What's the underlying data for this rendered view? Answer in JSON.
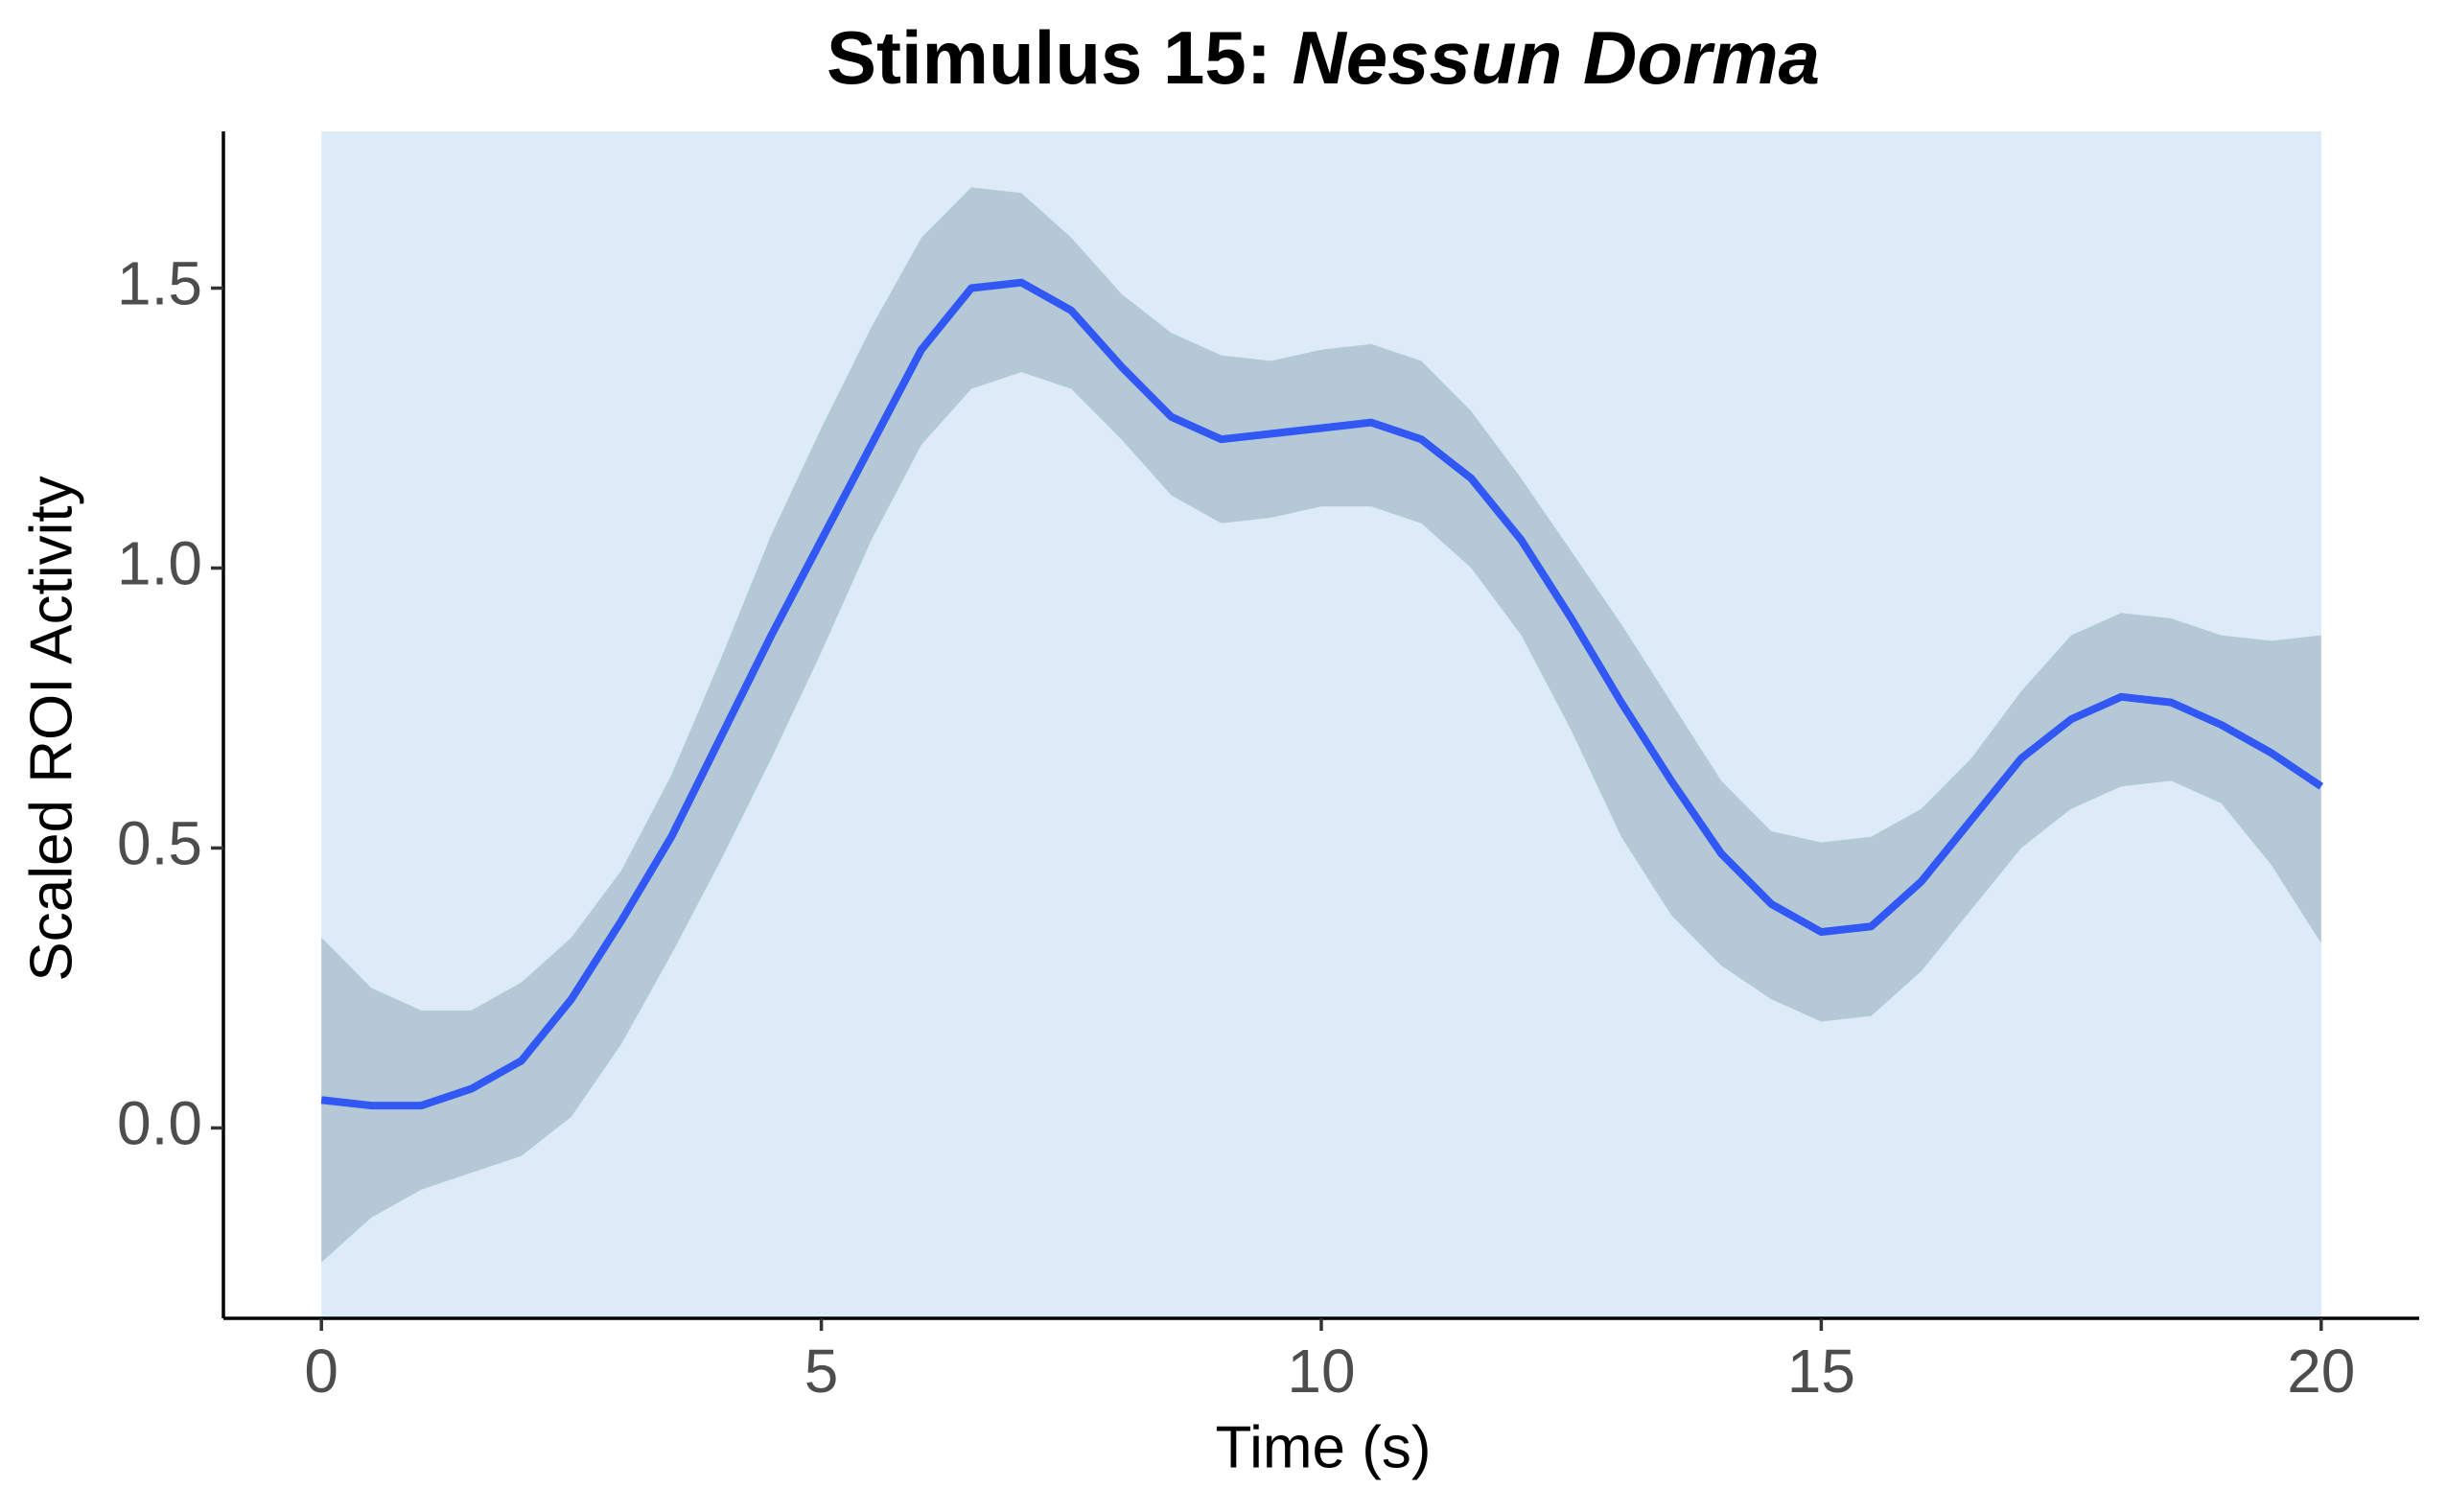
{
  "chart_data": {
    "type": "line",
    "title": "Stimulus 15:",
    "title_italic": "Nessun Dorma",
    "x_label": "Time (s)",
    "y_label": "Scaled ROI Activity",
    "x": [
      0,
      0.5,
      1,
      1.5,
      2,
      2.5,
      3,
      3.5,
      4,
      4.5,
      5,
      5.5,
      6,
      6.5,
      7,
      7.5,
      8,
      8.5,
      9,
      9.5,
      10,
      10.5,
      11,
      11.5,
      12,
      12.5,
      13,
      13.5,
      14,
      14.5,
      15,
      15.5,
      16,
      16.5,
      17,
      17.5,
      18,
      18.5,
      19,
      19.5,
      20
    ],
    "values": [
      0.05,
      0.04,
      0.04,
      0.07,
      0.12,
      0.23,
      0.37,
      0.52,
      0.7,
      0.88,
      1.05,
      1.22,
      1.39,
      1.5,
      1.51,
      1.46,
      1.36,
      1.27,
      1.23,
      1.24,
      1.25,
      1.26,
      1.23,
      1.16,
      1.05,
      0.91,
      0.76,
      0.62,
      0.49,
      0.4,
      0.35,
      0.36,
      0.44,
      0.55,
      0.66,
      0.73,
      0.77,
      0.76,
      0.72,
      0.67,
      0.61
    ],
    "lower": [
      -0.24,
      -0.16,
      -0.11,
      -0.08,
      -0.05,
      0.02,
      0.15,
      0.31,
      0.48,
      0.66,
      0.85,
      1.05,
      1.22,
      1.32,
      1.35,
      1.32,
      1.23,
      1.13,
      1.08,
      1.09,
      1.11,
      1.11,
      1.08,
      1.0,
      0.88,
      0.71,
      0.52,
      0.38,
      0.29,
      0.23,
      0.19,
      0.2,
      0.28,
      0.39,
      0.5,
      0.57,
      0.61,
      0.62,
      0.58,
      0.47,
      0.33
    ],
    "upper": [
      0.34,
      0.25,
      0.21,
      0.21,
      0.26,
      0.34,
      0.46,
      0.63,
      0.84,
      1.06,
      1.25,
      1.43,
      1.59,
      1.68,
      1.67,
      1.59,
      1.49,
      1.42,
      1.38,
      1.37,
      1.39,
      1.4,
      1.37,
      1.28,
      1.16,
      1.03,
      0.9,
      0.76,
      0.62,
      0.53,
      0.51,
      0.52,
      0.57,
      0.66,
      0.78,
      0.88,
      0.92,
      0.91,
      0.88,
      0.87,
      0.88
    ],
    "color": "#3158f5",
    "band_color": "#b5c8d5",
    "highlight": {
      "xmin": 0,
      "xmax": 20,
      "color": "#dcebf7"
    },
    "xlim": [
      -0.98,
      20.98
    ],
    "xticks": [
      0,
      5,
      10,
      15,
      20
    ],
    "ylim": [
      -0.34,
      1.78
    ],
    "yticks": [
      {
        "value": 0,
        "label": "0.0"
      },
      0.5,
      {
        "value": 1,
        "label": "1.0"
      },
      1.5
    ],
    "grid": false
  }
}
